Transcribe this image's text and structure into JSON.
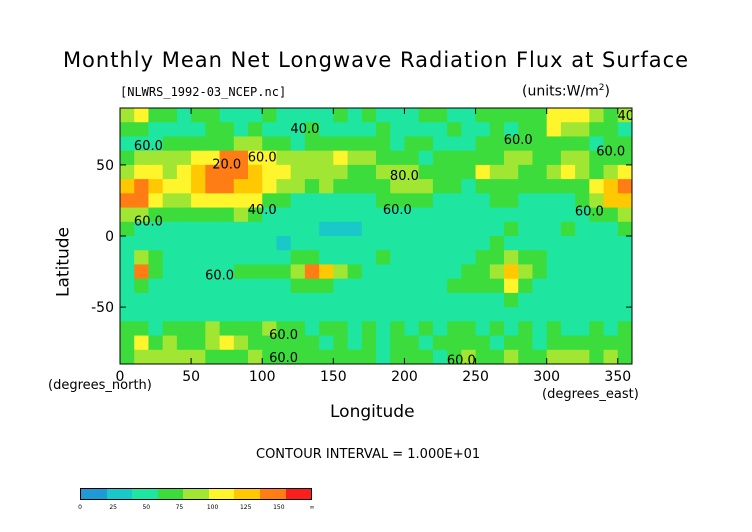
{
  "title": "Monthly Mean Net Longwave Radiation Flux at Surface",
  "file_label": "[NLWRS_1992-03_NCEP.nc]",
  "units_label": "(units:W/m^2)",
  "contour_interval_label": "CONTOUR INTERVAL = 1.000E+01",
  "colors": {
    "levels": [
      "#1e9bd7",
      "#19c8c8",
      "#1ee6a0",
      "#3cdc3c",
      "#a0e632",
      "#fff52d",
      "#ffc800",
      "#ff7d14",
      "#fa1e1e"
    ],
    "level_labels": [
      "0",
      "25",
      "50",
      "75",
      "100",
      "125",
      "150",
      "∞"
    ]
  },
  "chart_data": {
    "type": "heatmap",
    "title": "Monthly Mean Net Longwave Radiation Flux at Surface",
    "xlabel": "Longitude",
    "ylabel": "Latitude",
    "x_unit": "(degrees_east)",
    "y_unit": "(degrees_north)",
    "xlim": [
      0,
      360
    ],
    "ylim": [
      -90,
      90
    ],
    "x_ticks": [
      0,
      50,
      100,
      150,
      200,
      250,
      300,
      350
    ],
    "y_ticks": [
      -50,
      0,
      50
    ],
    "contour_interval": 10,
    "contour_labels": [
      {
        "lon": 20,
        "lat": 63,
        "text": "60.0"
      },
      {
        "lon": 75,
        "lat": 50,
        "text": "20.0"
      },
      {
        "lon": 130,
        "lat": 75,
        "text": "40.0"
      },
      {
        "lon": 100,
        "lat": 55,
        "text": "60.0"
      },
      {
        "lon": 100,
        "lat": 18,
        "text": "40.0"
      },
      {
        "lon": 195,
        "lat": 18,
        "text": "60.0"
      },
      {
        "lon": 200,
        "lat": 42,
        "text": "80.0"
      },
      {
        "lon": 280,
        "lat": 67,
        "text": "60.0"
      },
      {
        "lon": 360,
        "lat": 84,
        "text": "40.0"
      },
      {
        "lon": 345,
        "lat": 59,
        "text": "60.0"
      },
      {
        "lon": 330,
        "lat": 17,
        "text": "60.0"
      },
      {
        "lon": 20,
        "lat": 10,
        "text": "60.0"
      },
      {
        "lon": 70,
        "lat": -28,
        "text": "60.0"
      },
      {
        "lon": 115,
        "lat": -70,
        "text": "60.0"
      },
      {
        "lon": 115,
        "lat": -86,
        "text": "60.0"
      },
      {
        "lon": 240,
        "lat": -88,
        "text": "60.0"
      }
    ],
    "field": {
      "description_levels": [
        0,
        25,
        50,
        75,
        100,
        125,
        150
      ],
      "lon_step": 10,
      "lat_step": 10,
      "lats": [
        85,
        75,
        65,
        55,
        45,
        35,
        25,
        15,
        5,
        -5,
        -15,
        -25,
        -35,
        -45,
        -55,
        -65,
        -75,
        -85
      ],
      "rows": [
        [
          80,
          95,
          70,
          60,
          55,
          60,
          65,
          55,
          50,
          55,
          60,
          55,
          50,
          55,
          55,
          60,
          55,
          60,
          55,
          50,
          55,
          60,
          60,
          55,
          50,
          60,
          65,
          60,
          60,
          70,
          90,
          100,
          95,
          75,
          70,
          80
        ],
        [
          60,
          60,
          55,
          50,
          50,
          55,
          60,
          60,
          55,
          60,
          55,
          45,
          55,
          60,
          55,
          50,
          55,
          55,
          60,
          55,
          55,
          50,
          55,
          60,
          55,
          55,
          60,
          55,
          65,
          70,
          95,
          85,
          75,
          60,
          60,
          55
        ],
        [
          55,
          50,
          55,
          60,
          65,
          60,
          65,
          70,
          75,
          80,
          70,
          60,
          55,
          60,
          65,
          70,
          65,
          60,
          60,
          55,
          60,
          60,
          55,
          55,
          55,
          60,
          65,
          60,
          60,
          70,
          65,
          60,
          60,
          55,
          60,
          60
        ],
        [
          70,
          75,
          80,
          85,
          80,
          90,
          100,
          120,
          125,
          100,
          90,
          85,
          80,
          85,
          80,
          90,
          85,
          80,
          70,
          65,
          60,
          55,
          60,
          60,
          65,
          70,
          70,
          80,
          75,
          70,
          65,
          80,
          85,
          70,
          65,
          70
        ],
        [
          80,
          95,
          90,
          85,
          100,
          110,
          120,
          130,
          125,
          115,
          100,
          90,
          85,
          80,
          85,
          75,
          70,
          70,
          75,
          80,
          80,
          70,
          60,
          60,
          70,
          95,
          85,
          75,
          70,
          65,
          85,
          95,
          80,
          70,
          85,
          95
        ],
        [
          110,
          130,
          115,
          100,
          95,
          110,
          125,
          120,
          110,
          115,
          100,
          80,
          75,
          70,
          75,
          70,
          65,
          65,
          70,
          75,
          80,
          75,
          70,
          60,
          55,
          70,
          60,
          65,
          60,
          60,
          60,
          65,
          60,
          90,
          115,
          125
        ],
        [
          125,
          130,
          100,
          80,
          75,
          90,
          95,
          100,
          95,
          90,
          70,
          60,
          55,
          55,
          55,
          50,
          55,
          55,
          60,
          65,
          60,
          60,
          55,
          55,
          50,
          55,
          60,
          60,
          55,
          55,
          55,
          55,
          60,
          80,
          105,
          110
        ],
        [
          80,
          75,
          70,
          60,
          60,
          65,
          60,
          70,
          75,
          65,
          55,
          50,
          45,
          50,
          50,
          45,
          45,
          40,
          45,
          45,
          50,
          50,
          45,
          45,
          45,
          50,
          50,
          55,
          50,
          50,
          55,
          50,
          55,
          60,
          70,
          75
        ],
        [
          60,
          55,
          50,
          45,
          50,
          50,
          55,
          55,
          50,
          45,
          45,
          40,
          40,
          40,
          35,
          35,
          35,
          40,
          40,
          40,
          40,
          40,
          45,
          45,
          45,
          50,
          55,
          60,
          55,
          55,
          55,
          60,
          55,
          55,
          55,
          60
        ],
        [
          50,
          55,
          50,
          45,
          50,
          55,
          50,
          50,
          45,
          40,
          40,
          35,
          40,
          40,
          40,
          40,
          45,
          45,
          40,
          40,
          40,
          45,
          45,
          50,
          50,
          55,
          60,
          55,
          55,
          50,
          50,
          55,
          50,
          50,
          50,
          55
        ],
        [
          55,
          80,
          60,
          50,
          45,
          45,
          50,
          50,
          55,
          55,
          55,
          55,
          60,
          60,
          55,
          55,
          50,
          55,
          60,
          55,
          55,
          50,
          50,
          55,
          55,
          60,
          65,
          75,
          70,
          60,
          55,
          55,
          50,
          50,
          50,
          55
        ],
        [
          55,
          120,
          70,
          55,
          50,
          50,
          55,
          55,
          60,
          60,
          65,
          70,
          85,
          130,
          105,
          80,
          60,
          55,
          55,
          55,
          50,
          50,
          55,
          55,
          60,
          60,
          75,
          110,
          85,
          60,
          55,
          55,
          55,
          55,
          55,
          50
        ],
        [
          50,
          60,
          55,
          50,
          50,
          45,
          45,
          50,
          55,
          55,
          55,
          55,
          60,
          65,
          60,
          55,
          55,
          50,
          50,
          50,
          55,
          55,
          55,
          60,
          60,
          60,
          65,
          95,
          70,
          55,
          50,
          50,
          50,
          50,
          50,
          50
        ],
        [
          50,
          45,
          45,
          40,
          45,
          45,
          40,
          45,
          45,
          50,
          50,
          50,
          50,
          55,
          55,
          55,
          55,
          50,
          50,
          50,
          50,
          50,
          55,
          50,
          50,
          55,
          55,
          60,
          55,
          50,
          50,
          45,
          45,
          45,
          45,
          45
        ],
        [
          55,
          50,
          55,
          55,
          50,
          55,
          55,
          55,
          55,
          55,
          55,
          55,
          55,
          55,
          55,
          55,
          55,
          50,
          55,
          50,
          55,
          55,
          55,
          50,
          55,
          55,
          55,
          50,
          50,
          55,
          55,
          55,
          55,
          50,
          55,
          55
        ],
        [
          60,
          70,
          55,
          65,
          70,
          60,
          75,
          65,
          60,
          65,
          75,
          60,
          60,
          55,
          60,
          60,
          55,
          60,
          55,
          60,
          55,
          60,
          55,
          60,
          60,
          55,
          60,
          55,
          60,
          55,
          60,
          55,
          55,
          60,
          55,
          65
        ],
        [
          65,
          90,
          70,
          80,
          65,
          70,
          80,
          95,
          75,
          65,
          60,
          65,
          70,
          60,
          55,
          60,
          55,
          60,
          55,
          60,
          60,
          55,
          60,
          65,
          60,
          60,
          55,
          60,
          60,
          55,
          60,
          60,
          60,
          60,
          70,
          60
        ],
        [
          70,
          85,
          80,
          75,
          85,
          75,
          70,
          60,
          65,
          80,
          70,
          60,
          65,
          60,
          60,
          65,
          60,
          60,
          55,
          60,
          60,
          60,
          55,
          60,
          85,
          70,
          65,
          75,
          70,
          60,
          80,
          75,
          75,
          65,
          75,
          70
        ]
      ]
    }
  }
}
